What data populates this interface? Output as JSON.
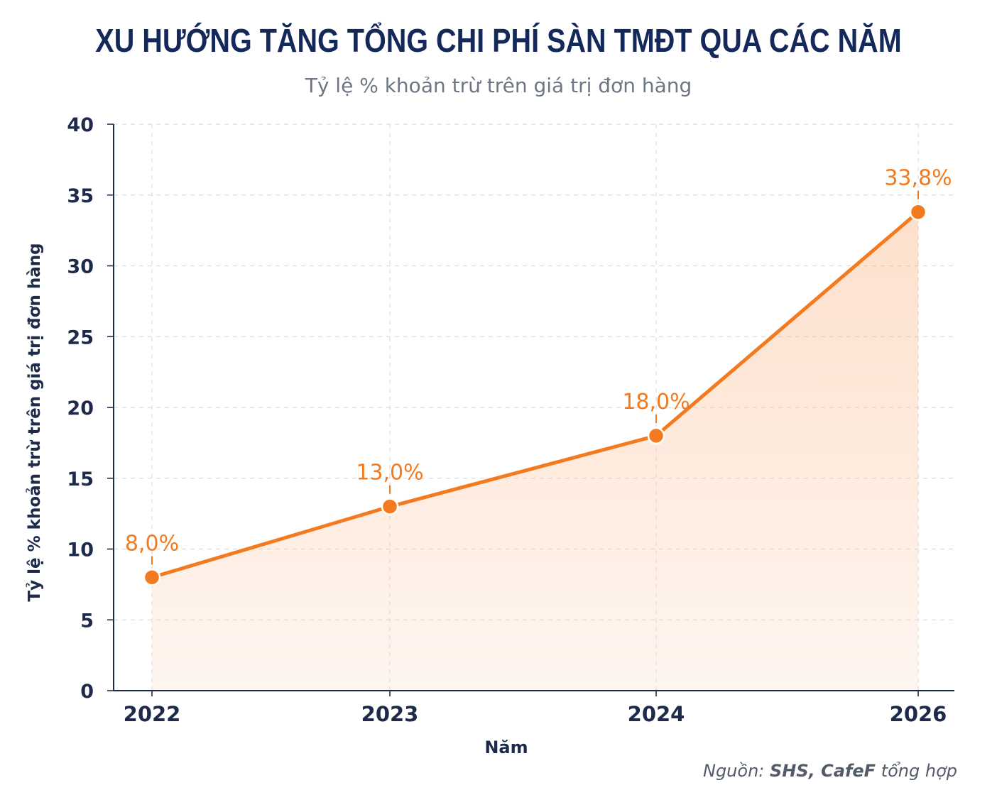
{
  "chart_data": {
    "type": "line",
    "title": "XU HƯỚNG TĂNG TỔNG CHI PHÍ SÀN TMĐT QUA CÁC NĂM",
    "subtitle": "Tỷ lệ % khoản trừ trên giá trị đơn hàng",
    "xlabel": "Năm",
    "ylabel": "Tỷ lệ % khoản trừ trên giá trị đơn hàng",
    "categories": [
      "2022",
      "2023",
      "2024",
      "2026"
    ],
    "series": [
      {
        "values": [
          8.0,
          13.0,
          18.0,
          33.8
        ],
        "data_labels": [
          "8,0%",
          "13,0%",
          "18,0%",
          "33,8%"
        ],
        "color": "#f47a1f"
      }
    ],
    "ylim": [
      0,
      40
    ],
    "yticks": [
      "0",
      "5",
      "10",
      "15",
      "20",
      "25",
      "30",
      "35",
      "40"
    ],
    "grid": true,
    "area_fill": true,
    "colors": {
      "line": "#f47a1f",
      "axis": "#1e2a4a",
      "grid": "#d9dce2",
      "text": "#1e2a4a"
    }
  },
  "source": {
    "prefix": "Nguồn: ",
    "bold": "SHS, CafeF",
    "suffix": " tổng hợp"
  }
}
